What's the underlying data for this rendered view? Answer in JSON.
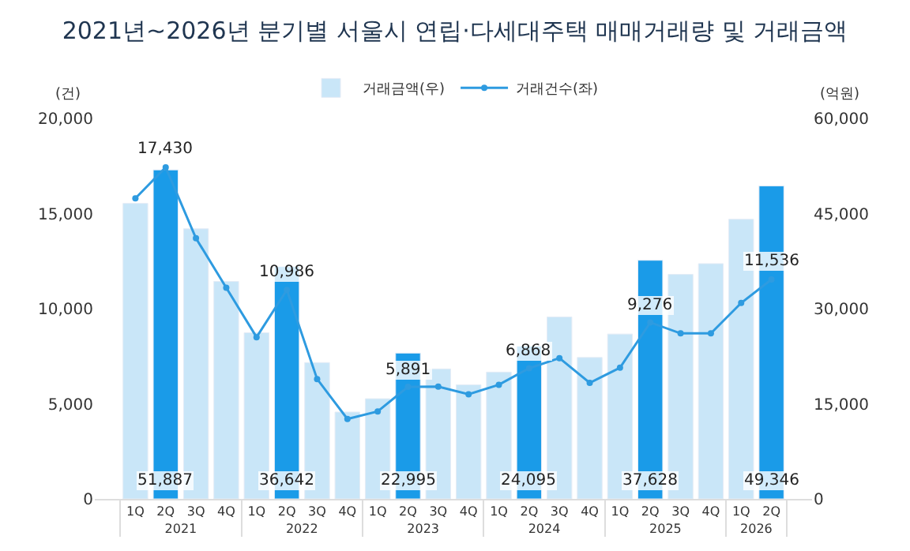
{
  "chart_data": {
    "type": "bar",
    "title": "2021년~2026년 분기별 서울시 연립·다세대주택 매매거래량 및 거래금액",
    "categories": [
      "1Q",
      "2Q",
      "3Q",
      "4Q",
      "1Q",
      "2Q",
      "3Q",
      "4Q",
      "1Q",
      "2Q",
      "3Q",
      "4Q",
      "1Q",
      "2Q",
      "3Q",
      "4Q",
      "1Q",
      "2Q",
      "3Q",
      "4Q",
      "1Q",
      "2Q"
    ],
    "annotations": [
      "2021",
      "2022",
      "2023",
      "2024",
      "2025",
      "2026"
    ],
    "ylabel": "(건)",
    "y2label": "(억원)",
    "ylim": [
      0,
      20000
    ],
    "yticks": [
      {
        "value": 0,
        "label": "0"
      },
      {
        "value": 5000,
        "label": "5,000"
      },
      {
        "value": 10000,
        "label": "10,000"
      },
      {
        "value": 15000,
        "label": "15,000"
      },
      {
        "value": 20000,
        "label": "20,000"
      }
    ],
    "y2lim": [
      0,
      60000
    ],
    "y2ticks": [
      {
        "value": 0,
        "label": "0"
      },
      {
        "value": 15000,
        "label": "15,000"
      },
      {
        "value": 30000,
        "label": "30,000"
      },
      {
        "value": 45000,
        "label": "45,000"
      },
      {
        "value": 60000,
        "label": "60,000"
      }
    ],
    "series": [
      {
        "name": "거래금액(우)",
        "axis": "y2",
        "colors": [
          "#c9e6f8",
          "#1a9be8",
          "#c9e6f8",
          "#c9e6f8",
          "#c9e6f8",
          "#1a9be8",
          "#c9e6f8",
          "#c9e6f8",
          "#c9e6f8",
          "#1a9be8",
          "#c9e6f8",
          "#c9e6f8",
          "#c9e6f8",
          "#1a9be8",
          "#c9e6f8",
          "#c9e6f8",
          "#c9e6f8",
          "#1a9be8",
          "#c9e6f8",
          "#c9e6f8",
          "#c9e6f8",
          "#1a9be8"
        ],
        "values": [
          46600,
          51887,
          42600,
          34300,
          26200,
          36642,
          21500,
          13700,
          15800,
          22995,
          20500,
          18000,
          20000,
          24095,
          28700,
          22300,
          26000,
          37628,
          35400,
          37100,
          44100,
          49346
        ],
        "value_labels": [
          null,
          "51,887",
          null,
          null,
          null,
          "36,642",
          null,
          null,
          null,
          "22,995",
          null,
          null,
          null,
          "24,095",
          null,
          null,
          null,
          "37,628",
          null,
          null,
          null,
          "49,346"
        ]
      },
      {
        "name": "거래건수(좌)",
        "type": "line",
        "axis": "y",
        "color": "#2e9be0",
        "marker": "circle",
        "values": [
          15800,
          17430,
          13700,
          11100,
          8500,
          10986,
          6300,
          4200,
          4600,
          5891,
          5900,
          5500,
          6000,
          6868,
          7400,
          6100,
          6900,
          9276,
          8700,
          8700,
          10300,
          11536
        ],
        "value_labels": [
          null,
          "17,430",
          null,
          null,
          null,
          "10,986",
          null,
          null,
          null,
          "5,891",
          null,
          null,
          null,
          "6,868",
          null,
          null,
          null,
          "9,276",
          null,
          null,
          null,
          "11,536"
        ]
      }
    ],
    "legend": "top"
  }
}
